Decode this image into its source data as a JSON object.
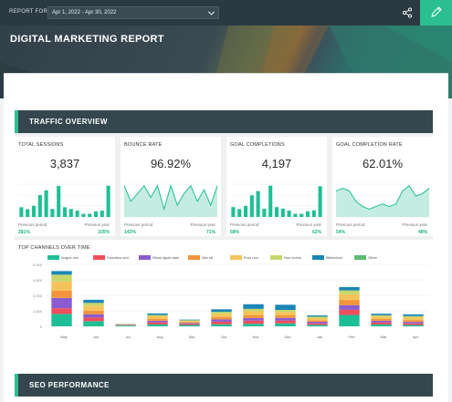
{
  "header": {
    "report_for_label": "REPORT FOR",
    "date_range": "Apr 1, 2022 - Apr 30, 2022",
    "title": "DIGITAL MARKETING REPORT",
    "share_icon": "share-icon",
    "edit_icon": "pencil-icon",
    "accent": "#2bbf8f"
  },
  "sections": {
    "traffic": "TRAFFIC OVERVIEW",
    "seo": "SEO PERFORMANCE"
  },
  "kpis": [
    {
      "title": "TOTAL SESSIONS",
      "value": "3,837",
      "chart": "bar",
      "prev_label": "Previous period",
      "prev_value": "281%",
      "year_label": "Previous year",
      "year_value": "105%",
      "series": [
        4,
        3.2,
        4.6,
        9,
        11,
        3.3,
        12.8,
        4,
        3.3,
        2.6,
        1.3,
        1.3,
        2.3,
        2.6,
        12.9
      ]
    },
    {
      "title": "BOUNCE RATE",
      "value": "96.92%",
      "chart": "area",
      "prev_label": "Previous period",
      "prev_value": "142%",
      "year_label": "Previous year",
      "year_value": "71%",
      "series": [
        8,
        4,
        6,
        8,
        5,
        8,
        2,
        8,
        3,
        6,
        8,
        4,
        7,
        3,
        8
      ]
    },
    {
      "title": "GOAL COMPLETIONS",
      "value": "4,197",
      "chart": "bar",
      "prev_label": "Previous period",
      "prev_value": "58%",
      "year_label": "Previous year",
      "year_value": "62%",
      "series": [
        4,
        3.2,
        4.5,
        8.8,
        10.5,
        3.4,
        12.7,
        4,
        3.4,
        2.6,
        1.3,
        1.3,
        2.3,
        2.7,
        12.5
      ]
    },
    {
      "title": "GOAL COMPLETION RATE",
      "value": "62.01%",
      "chart": "area",
      "prev_label": "Previous period",
      "prev_value": "54%",
      "year_label": "Previous year",
      "year_value": "48%",
      "series": [
        5,
        5.5,
        5,
        3,
        2,
        1.5,
        2,
        2.5,
        2,
        2.5,
        5,
        6,
        4,
        4.5,
        5.5
      ]
    }
  ],
  "channels_chart": {
    "title": "TOP CHANNELS OVER TIME",
    "legend": [
      {
        "name": "Augue nisl",
        "color": "#1fbf95"
      },
      {
        "name": "Faucibus sed",
        "color": "#f04e5c"
      },
      {
        "name": "Risus ligula auis",
        "color": "#8a5ccf"
      },
      {
        "name": "Nisi sit",
        "color": "#f2943c"
      },
      {
        "name": "Eros non",
        "color": "#f4c35a"
      },
      {
        "name": "Non lectus",
        "color": "#c6d66a"
      },
      {
        "name": "Bibendum",
        "color": "#1b86b7"
      },
      {
        "name": "Other",
        "color": "#5dbd72"
      }
    ]
  },
  "chart_data": {
    "type": "bar",
    "stacked": true,
    "categories": [
      "May",
      "Jun",
      "Jul",
      "Aug",
      "Sep",
      "Oct",
      "Nov",
      "Dec",
      "Jan",
      "Feb",
      "Mar",
      "Apr"
    ],
    "ylim": [
      0,
      6000
    ],
    "yticks": [
      "0",
      "1,500",
      "3,000",
      "4,500",
      "6,000"
    ],
    "series": [
      {
        "name": "Augue nisl",
        "values": [
          1200,
          500,
          80,
          180,
          130,
          200,
          250,
          280,
          140,
          1100,
          180,
          130
        ]
      },
      {
        "name": "Faucibus sed",
        "values": [
          550,
          350,
          30,
          200,
          100,
          250,
          300,
          280,
          150,
          500,
          200,
          150
        ]
      },
      {
        "name": "Risus ligula auis",
        "values": [
          1000,
          320,
          30,
          160,
          90,
          220,
          250,
          250,
          150,
          450,
          160,
          150
        ]
      },
      {
        "name": "Nisi sit",
        "values": [
          700,
          350,
          30,
          170,
          80,
          230,
          260,
          250,
          150,
          500,
          170,
          180
        ]
      },
      {
        "name": "Eros non",
        "values": [
          900,
          450,
          30,
          260,
          120,
          300,
          400,
          330,
          200,
          550,
          230,
          230
        ]
      },
      {
        "name": "Non lectus",
        "values": [
          650,
          300,
          30,
          130,
          70,
          200,
          230,
          200,
          150,
          380,
          130,
          150
        ]
      },
      {
        "name": "Bibendum",
        "values": [
          350,
          300,
          20,
          150,
          60,
          250,
          450,
          500,
          120,
          320,
          150,
          170
        ]
      }
    ]
  }
}
